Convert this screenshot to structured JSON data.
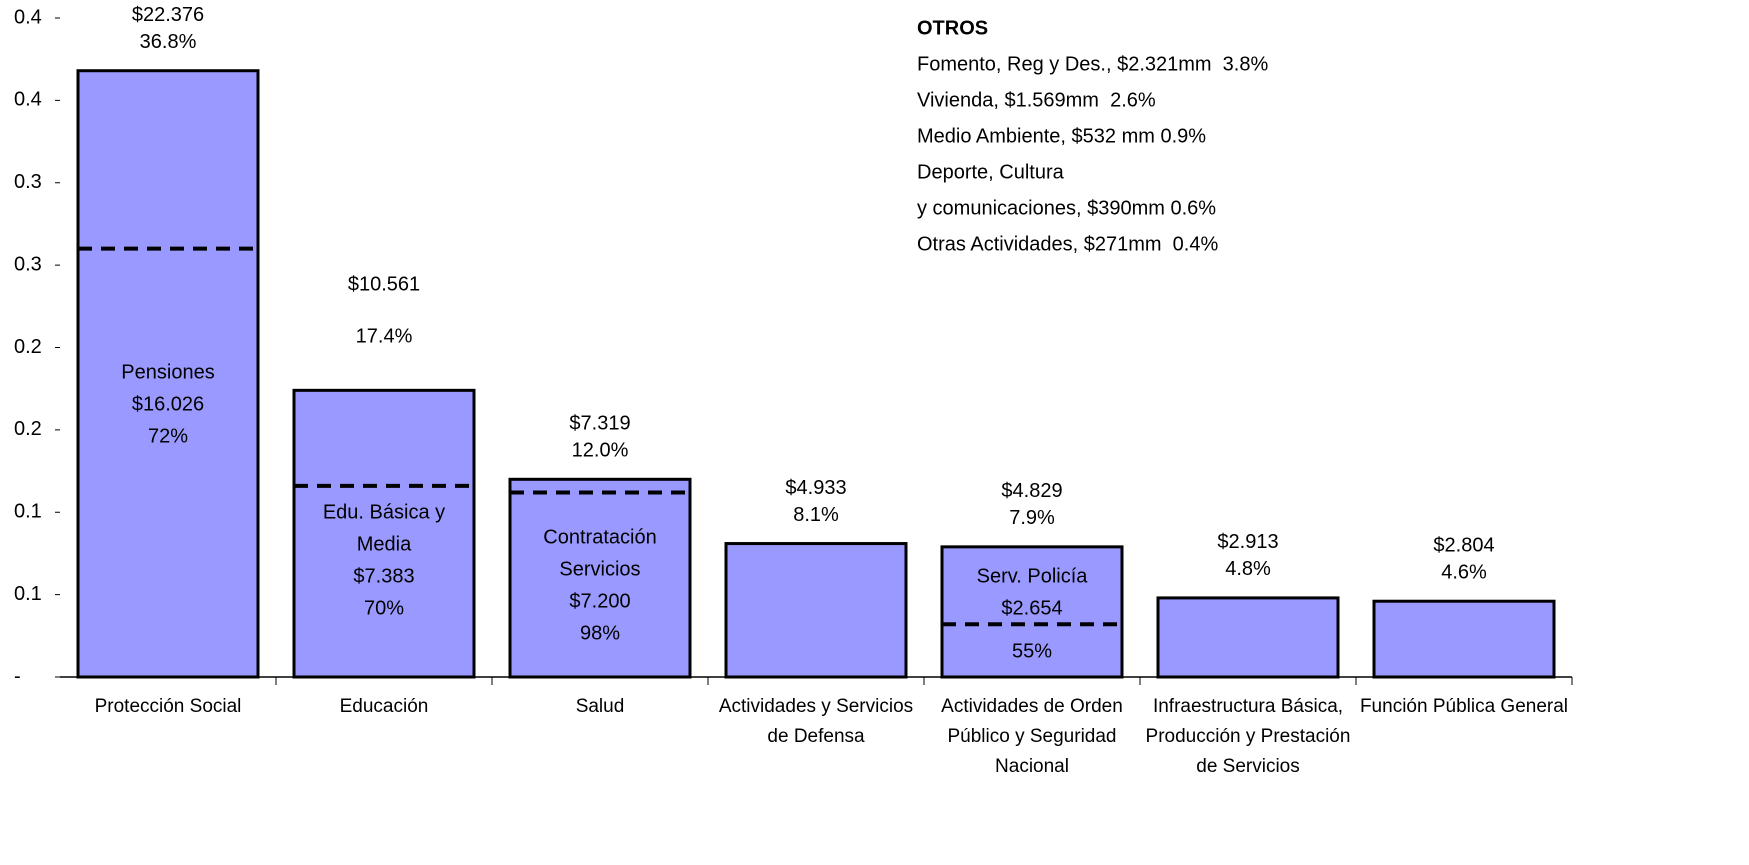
{
  "chart_data": {
    "type": "bar",
    "categories": [
      "Protección Social",
      "Educación",
      "Salud",
      "Actividades y Servicios de Defensa",
      "Actividades de Orden Público y Seguridad Nacional",
      "Infraestructura Básica, Producción y Prestación de Servicios",
      "Función Pública General"
    ],
    "values": [
      0.368,
      0.174,
      0.12,
      0.081,
      0.079,
      0.048,
      0.046
    ],
    "value_labels": [
      "36.8%",
      "17.4%",
      "12.0%",
      "8.1%",
      "7.9%",
      "4.8%",
      "4.6%"
    ],
    "amounts": [
      "$22.376",
      "$10.561",
      "$7.319",
      "$4.933",
      "$4.829",
      "$2.913",
      "$2.804"
    ],
    "color": "#9999ff",
    "ylim": [
      0,
      0.4
    ],
    "yticks": [
      {
        "value": 0,
        "label": "-"
      },
      {
        "value": 0.05,
        "label": "0.1"
      },
      0.1,
      {
        "value": 0.15,
        "label": "0.2"
      },
      0.2,
      {
        "value": 0.25,
        "label": "0.3"
      },
      0.3,
      {
        "value": 0.35,
        "label": "0.4"
      },
      0.4
    ],
    "sub_segments": [
      {
        "category": 0,
        "value": 0.26,
        "lines": [
          "Pensiones",
          "$16.026"
        ],
        "share_label": "72%"
      },
      {
        "category": 1,
        "value": 0.116,
        "lines": [
          "Edu. Básica y",
          "Media",
          "$7.383"
        ],
        "share_label": "70%"
      },
      {
        "category": 2,
        "value": 0.112,
        "lines": [
          "Contratación",
          "Servicios",
          "$7.200"
        ],
        "share_label": "98%"
      },
      {
        "category": 4,
        "value": 0.032,
        "lines": [
          "Serv. Policía",
          "$2.654"
        ],
        "share_label": "55%"
      }
    ],
    "others": {
      "title": "OTROS",
      "lines": [
        "Fomento, Reg y Des., $2.321mm  3.8%",
        "Vivienda, $1.569mm  2.6%",
        "Medio Ambiente, $532 mm 0.9%",
        "Deporte, Cultura",
        "y comunicaciones, $390mm 0.6%",
        "Otras Actividades, $271mm  0.4%"
      ]
    }
  }
}
